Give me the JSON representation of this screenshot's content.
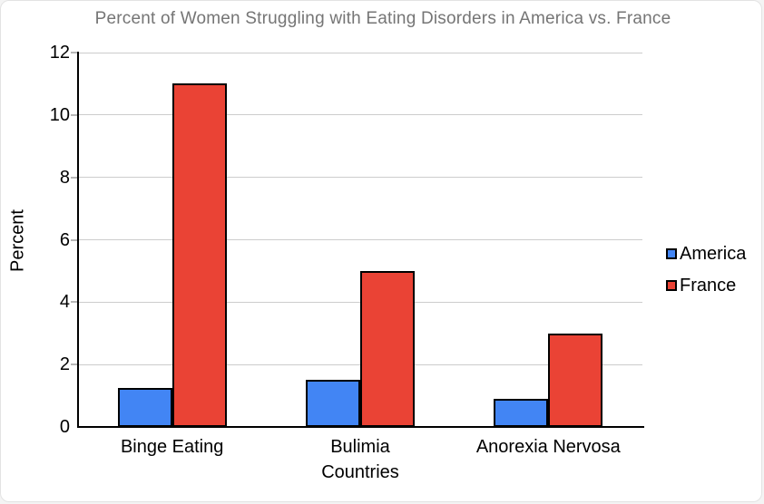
{
  "chart_data": {
    "type": "bar",
    "title": "Percent of Women Struggling with Eating Disorders in America vs. France",
    "xlabel": "Countries",
    "ylabel": "Percent",
    "categories": [
      "Binge Eating",
      "Bulimia",
      "Anorexia Nervosa"
    ],
    "series": [
      {
        "name": "America",
        "color": "#4285F4",
        "values": [
          1.25,
          1.5,
          0.9
        ]
      },
      {
        "name": "France",
        "color": "#EA4335",
        "values": [
          11,
          5,
          3
        ]
      }
    ],
    "ylim": [
      0,
      12
    ],
    "yticks": [
      0,
      2,
      4,
      6,
      8,
      10,
      12
    ],
    "grid": true,
    "legend_position": "right",
    "colors": {
      "title_text": "#757575",
      "axis_text": "#000000",
      "axis_line": "#000000",
      "gridline": "#cccccc",
      "tick_stub": "#b7b7b7",
      "bar_border": "#000000",
      "background": "#ffffff"
    }
  }
}
